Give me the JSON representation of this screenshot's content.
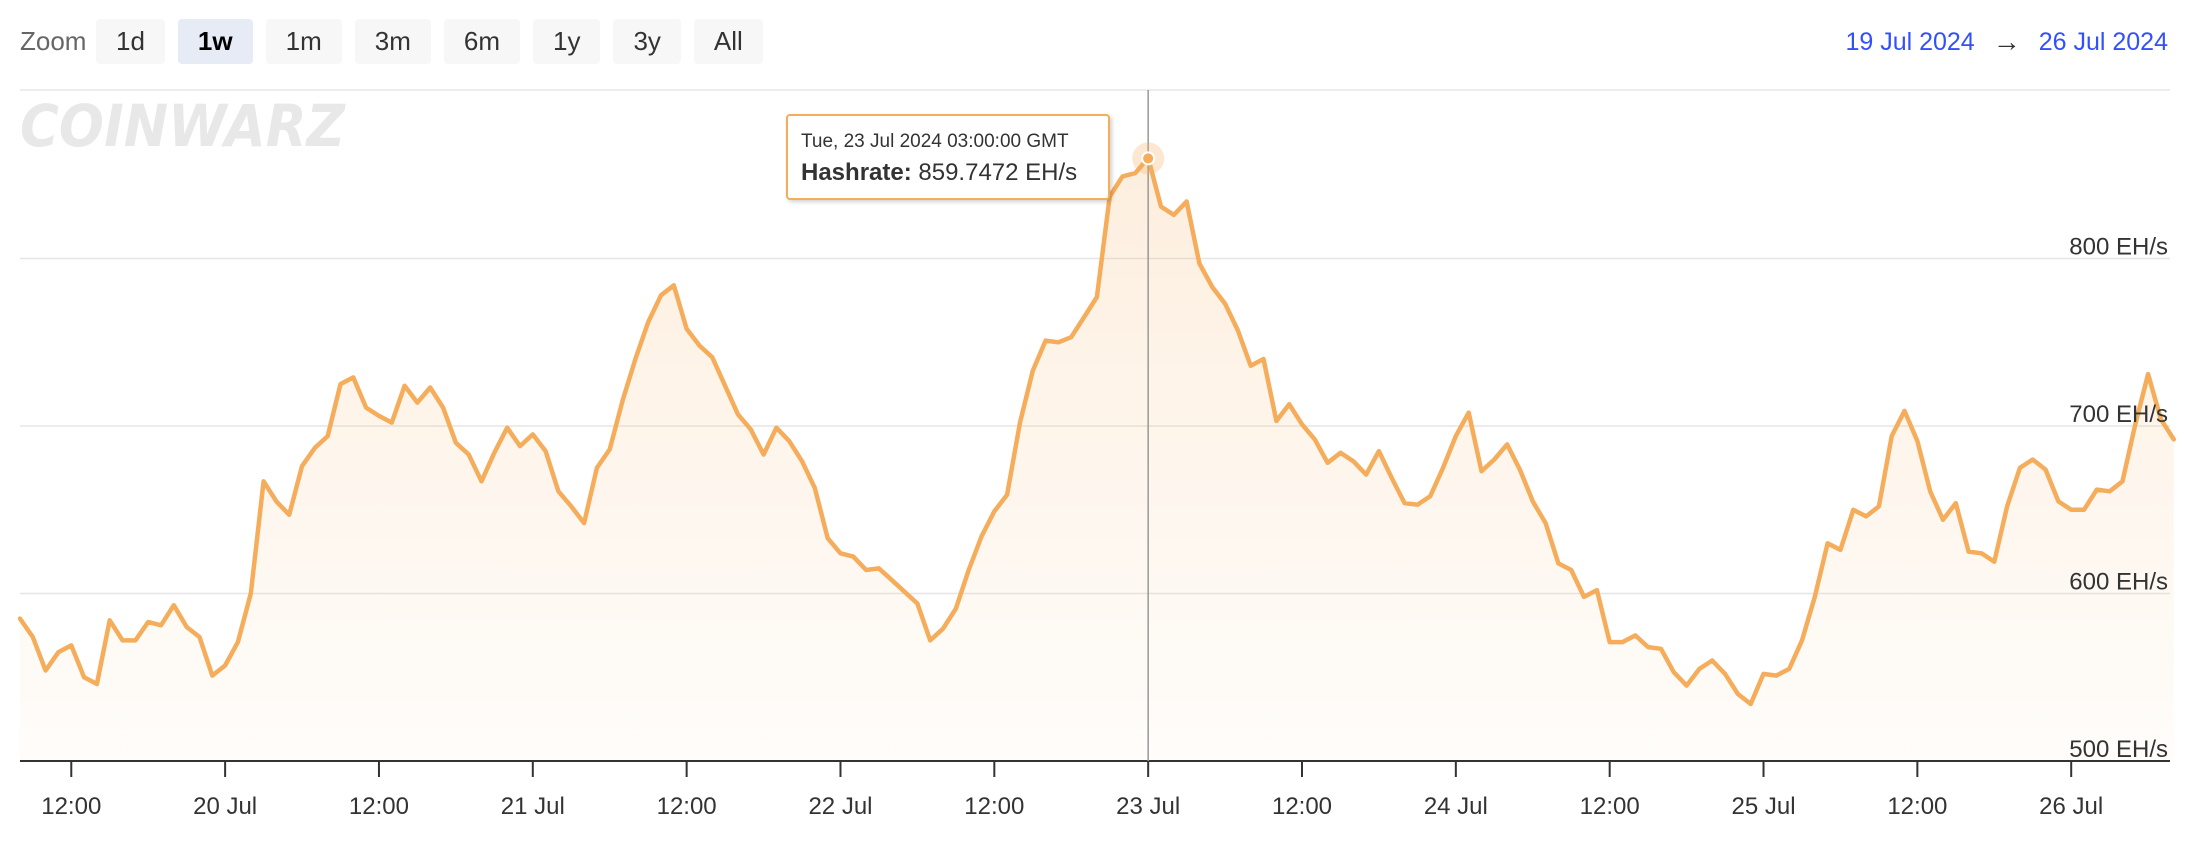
{
  "toolbar": {
    "zoom_label": "Zoom",
    "buttons": [
      "1d",
      "1w",
      "1m",
      "3m",
      "6m",
      "1y",
      "3y",
      "All"
    ],
    "active": "1w",
    "range_from": "19 Jul 2024",
    "range_arrow": "→",
    "range_to": "26 Jul 2024"
  },
  "watermark": "COINWARZ",
  "tooltip": {
    "date": "Tue, 23 Jul 2024 03:00:00 GMT",
    "series_label": "Hashrate:",
    "value_text": "859.7472 EH/s"
  },
  "colors": {
    "line": "#f5ad5c",
    "accent_link": "#3350ff",
    "grid": "#e6e6e6"
  },
  "chart_data": {
    "type": "area",
    "x_unit": "datetime (GMT)",
    "start": "2024-07-19T08:00:00Z",
    "interval_hours": 1,
    "y_unit": "EH/s",
    "ylim": [
      500,
      860
    ],
    "yticks": [
      500,
      600,
      700,
      800
    ],
    "ytick_labels": [
      "500 EH/s",
      "600 EH/s",
      "700 EH/s",
      "800 EH/s"
    ],
    "xticks": [
      "12:00",
      "20 Jul",
      "12:00",
      "21 Jul",
      "12:00",
      "22 Jul",
      "12:00",
      "23 Jul",
      "12:00",
      "24 Jul",
      "12:00",
      "25 Jul",
      "12:00",
      "26 Jul"
    ],
    "series": [
      {
        "values": [
          585,
          574,
          554,
          565,
          569,
          550,
          546,
          584,
          572,
          572,
          583,
          581,
          593,
          580,
          574,
          551,
          557,
          571,
          600,
          667,
          655,
          647,
          676,
          687,
          694,
          725,
          729,
          711,
          706,
          702,
          724,
          714,
          723,
          711,
          690,
          683,
          667,
          684,
          699,
          688,
          695,
          685,
          661,
          652,
          642,
          675,
          686,
          715,
          740,
          762,
          778,
          784,
          758,
          748,
          741,
          724,
          707,
          698,
          683,
          699,
          691,
          679,
          663,
          633,
          624,
          622,
          614,
          615,
          608,
          601,
          594,
          572,
          579,
          591,
          614,
          634,
          649,
          659,
          702,
          733,
          751,
          750,
          753,
          765,
          777,
          837,
          849,
          851,
          860,
          831,
          826,
          834,
          797,
          783,
          773,
          757,
          736,
          740,
          703,
          713,
          701,
          692,
          678,
          684,
          679,
          671,
          685,
          669,
          654,
          653,
          658,
          675,
          694,
          708,
          673,
          680,
          689,
          674,
          655,
          642,
          618,
          614,
          598,
          602,
          571,
          571,
          575,
          568,
          567,
          553,
          545,
          555,
          560,
          552,
          540,
          534,
          552,
          551,
          555,
          572,
          598,
          630,
          626,
          650,
          646,
          652,
          694,
          709,
          691,
          661,
          644,
          654,
          625,
          624,
          619,
          652,
          675,
          680,
          674,
          655,
          650,
          650,
          662,
          661,
          667,
          701,
          731,
          704,
          692
        ]
      }
    ],
    "highlight": {
      "index": 88,
      "date": "2024-07-23T03:00:00Z",
      "value": 859.7472
    }
  }
}
